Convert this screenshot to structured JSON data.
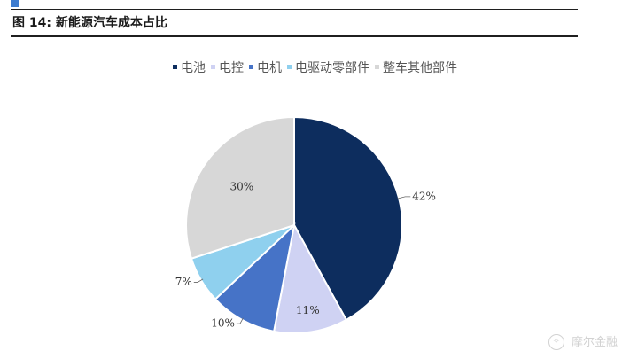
{
  "figure": {
    "title": "图 14:  新能源汽车成本占比"
  },
  "watermark": {
    "icon": "wechat-icon",
    "text": "摩尔金融"
  },
  "chart_data": {
    "type": "pie",
    "categories": [
      "电池",
      "电控",
      "电机",
      "电驱动零部件",
      "整车其他部件"
    ],
    "values": [
      42,
      11,
      10,
      7,
      30
    ],
    "value_labels": [
      "42%",
      "11%",
      "10%",
      "7%",
      "30%"
    ],
    "colors": [
      "#0d2d5e",
      "#cfd2f3",
      "#4673c7",
      "#8fd0ee",
      "#d7d7d7"
    ],
    "legend_position": "top-center",
    "start_angle_deg": 0,
    "direction": "clockwise"
  }
}
